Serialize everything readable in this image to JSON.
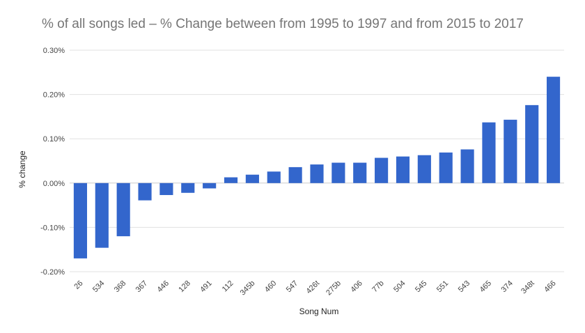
{
  "chart_data": {
    "type": "bar",
    "title": "% of all songs led – % Change between from 1995 to 1997 and from 2015 to 2017",
    "xlabel": "Song Num",
    "ylabel": "% change",
    "categories": [
      "26",
      "534",
      "368",
      "367",
      "446",
      "128",
      "491",
      "112",
      "345b",
      "460",
      "547",
      "426t",
      "275b",
      "406",
      "77b",
      "504",
      "545",
      "551",
      "543",
      "465",
      "374",
      "348t",
      "466"
    ],
    "values": [
      -0.17,
      -0.146,
      -0.12,
      -0.039,
      -0.027,
      -0.022,
      -0.012,
      0.013,
      0.019,
      0.026,
      0.036,
      0.042,
      0.046,
      0.046,
      0.057,
      0.06,
      0.063,
      0.069,
      0.076,
      0.137,
      0.143,
      0.176,
      0.24
    ],
    "ylim": [
      -0.2,
      0.3
    ],
    "yticks": [
      -0.2,
      -0.1,
      0.0,
      0.1,
      0.2,
      0.3
    ],
    "ytick_labels": [
      "-0.20%",
      "-0.10%",
      "0.00%",
      "0.10%",
      "0.20%",
      "0.30%"
    ],
    "grid": true,
    "legend": "none",
    "bar_color": "#3366cc"
  }
}
